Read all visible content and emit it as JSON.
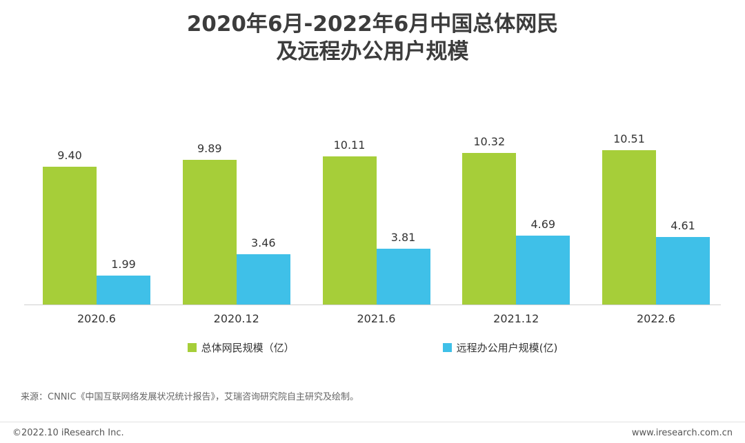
{
  "title": {
    "line1": "2020年6月-2022年6月中国总体网民",
    "line2": "及远程办公用户规模"
  },
  "chart_data": {
    "type": "bar",
    "categories": [
      "2020.6",
      "2020.12",
      "2021.6",
      "2021.12",
      "2022.6"
    ],
    "series": [
      {
        "name": "总体网民规模（亿）",
        "color": "#a6ce39",
        "values": [
          9.4,
          9.89,
          10.11,
          10.32,
          10.51
        ],
        "labels": [
          "9.40",
          "9.89",
          "10.11",
          "10.32",
          "10.51"
        ]
      },
      {
        "name": "远程办公用户规模(亿)",
        "color": "#3fc0e8",
        "values": [
          1.99,
          3.46,
          3.81,
          4.69,
          4.61
        ],
        "labels": [
          "1.99",
          "3.46",
          "3.81",
          "4.69",
          "4.61"
        ]
      }
    ],
    "ylim": [
      0,
      11
    ],
    "grid": false,
    "legend_position": "bottom",
    "xlabel": "",
    "ylabel": ""
  },
  "source": "来源：CNNIC《中国互联网络发展状况统计报告》，艾瑞咨询研究院自主研究及绘制。",
  "footer": {
    "left": "©2022.10 iResearch Inc.",
    "right": "www.iresearch.com.cn"
  }
}
